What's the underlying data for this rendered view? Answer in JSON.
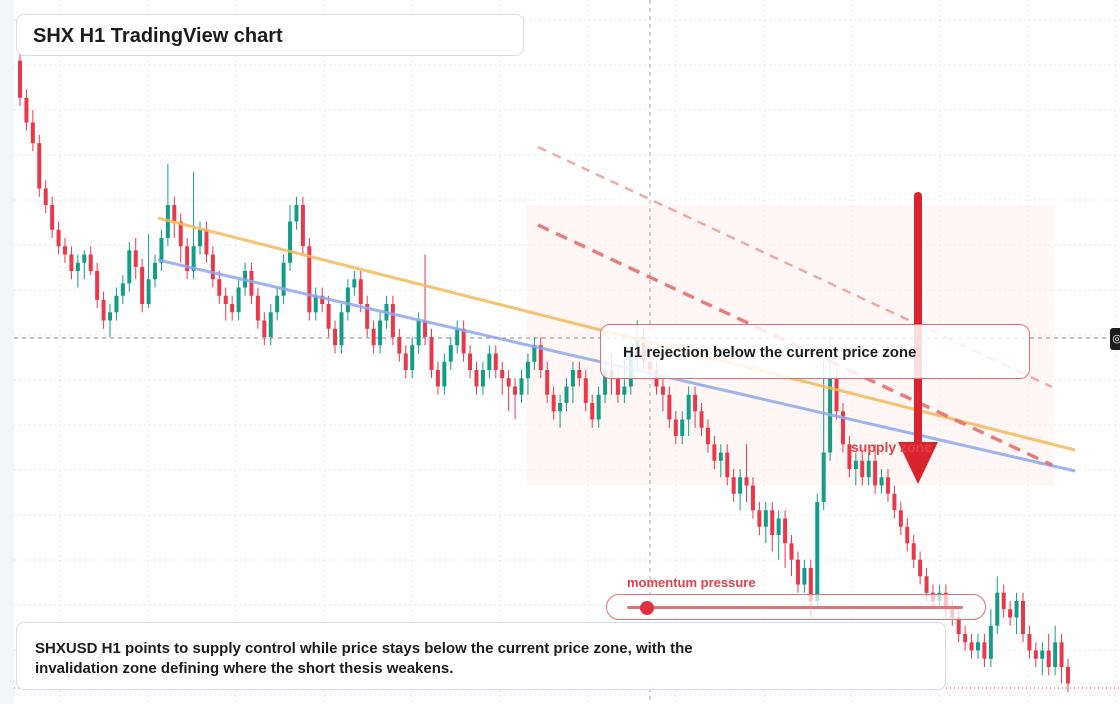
{
  "title": "SHX H1 TradingView chart",
  "callout": {
    "text": "H1 rejection below the current price zone"
  },
  "supply_zone_label": "supply zone",
  "momentum": {
    "label": "momentum pressure",
    "level": 0.06
  },
  "summary": "SHXUSD H1 points to supply control while price stays below the current price zone, with the invalidation zone defining where the short thesis weakens.",
  "edge_marker_icon": "target-icon",
  "colors": {
    "up": "#139c86",
    "down": "#e8384a",
    "trend_orange": "#f6b85a",
    "trend_blue": "#8fa6f0",
    "bear_dashed": "#e36a6a",
    "arrow": "#d9242e"
  },
  "chart_data": {
    "type": "candlestick",
    "timeframe": "H1",
    "symbol": "SHXUSD",
    "grid": true,
    "candles": [
      [
        105,
        96,
        107,
        94
      ],
      [
        96,
        90,
        98,
        88
      ],
      [
        90,
        85,
        93,
        83
      ],
      [
        85,
        74,
        87,
        72
      ],
      [
        74,
        70,
        76,
        68
      ],
      [
        70,
        64,
        72,
        62
      ],
      [
        64,
        60,
        66,
        58
      ],
      [
        60,
        58,
        62,
        56
      ],
      [
        58,
        54,
        60,
        52
      ],
      [
        54,
        56,
        58,
        50
      ],
      [
        56,
        58,
        59,
        52
      ],
      [
        58,
        54,
        60,
        53
      ],
      [
        54,
        47,
        56,
        45
      ],
      [
        47,
        42,
        49,
        40
      ],
      [
        42,
        44,
        46,
        38
      ],
      [
        44,
        48,
        50,
        42
      ],
      [
        48,
        51,
        53,
        46
      ],
      [
        51,
        59,
        61,
        49
      ],
      [
        59,
        55,
        62,
        52
      ],
      [
        55,
        46,
        57,
        44
      ],
      [
        46,
        52,
        63,
        45
      ],
      [
        52,
        56,
        58,
        50
      ],
      [
        56,
        62,
        64,
        54
      ],
      [
        62,
        70,
        80,
        60
      ],
      [
        70,
        66,
        72,
        62
      ],
      [
        66,
        60,
        68,
        56
      ],
      [
        60,
        54,
        62,
        52
      ],
      [
        54,
        60,
        78,
        52
      ],
      [
        60,
        64,
        66,
        58
      ],
      [
        64,
        58,
        66,
        56
      ],
      [
        58,
        52,
        60,
        50
      ],
      [
        52,
        48,
        54,
        46
      ],
      [
        48,
        46,
        50,
        42
      ],
      [
        46,
        44,
        48,
        42
      ],
      [
        44,
        50,
        52,
        42
      ],
      [
        50,
        54,
        56,
        48
      ],
      [
        54,
        48,
        56,
        46
      ],
      [
        48,
        42,
        50,
        40
      ],
      [
        42,
        38,
        44,
        36
      ],
      [
        38,
        44,
        46,
        36
      ],
      [
        44,
        48,
        50,
        42
      ],
      [
        48,
        56,
        58,
        46
      ],
      [
        56,
        66,
        70,
        54
      ],
      [
        66,
        70,
        72,
        64
      ],
      [
        70,
        60,
        72,
        58
      ],
      [
        60,
        44,
        62,
        42
      ],
      [
        44,
        48,
        50,
        42
      ],
      [
        48,
        46,
        50,
        44
      ],
      [
        46,
        40,
        48,
        38
      ],
      [
        40,
        36,
        42,
        34
      ],
      [
        36,
        44,
        46,
        34
      ],
      [
        44,
        50,
        52,
        42
      ],
      [
        50,
        52,
        54,
        48
      ],
      [
        52,
        46,
        54,
        44
      ],
      [
        46,
        40,
        48,
        38
      ],
      [
        40,
        36,
        42,
        34
      ],
      [
        36,
        42,
        44,
        34
      ],
      [
        42,
        46,
        48,
        40
      ],
      [
        46,
        38,
        48,
        36
      ],
      [
        38,
        34,
        40,
        32
      ],
      [
        34,
        30,
        36,
        28
      ],
      [
        30,
        36,
        38,
        28
      ],
      [
        36,
        42,
        44,
        34
      ],
      [
        42,
        38,
        58,
        36
      ],
      [
        38,
        30,
        40,
        28
      ],
      [
        30,
        26,
        32,
        24
      ],
      [
        26,
        32,
        34,
        24
      ],
      [
        32,
        36,
        38,
        30
      ],
      [
        36,
        40,
        42,
        34
      ],
      [
        40,
        34,
        42,
        32
      ],
      [
        34,
        30,
        36,
        28
      ],
      [
        30,
        26,
        32,
        24
      ],
      [
        26,
        30,
        32,
        24
      ],
      [
        30,
        34,
        36,
        28
      ],
      [
        34,
        30,
        36,
        28
      ],
      [
        30,
        28,
        32,
        24
      ],
      [
        28,
        26,
        30,
        20
      ],
      [
        26,
        24,
        28,
        18
      ],
      [
        24,
        28,
        30,
        22
      ],
      [
        28,
        32,
        34,
        24
      ],
      [
        32,
        36,
        38,
        30
      ],
      [
        36,
        30,
        38,
        28
      ],
      [
        30,
        24,
        32,
        22
      ],
      [
        24,
        20,
        26,
        18
      ],
      [
        20,
        22,
        24,
        16
      ],
      [
        22,
        26,
        28,
        20
      ],
      [
        26,
        30,
        32,
        22
      ],
      [
        30,
        28,
        32,
        26
      ],
      [
        28,
        22,
        30,
        20
      ],
      [
        22,
        18,
        24,
        16
      ],
      [
        18,
        24,
        26,
        16
      ],
      [
        24,
        30,
        32,
        22
      ],
      [
        30,
        28,
        34,
        24
      ],
      [
        28,
        24,
        30,
        22
      ],
      [
        24,
        26,
        36,
        22
      ],
      [
        26,
        34,
        38,
        24
      ],
      [
        34,
        38,
        42,
        30
      ],
      [
        38,
        32,
        40,
        30
      ],
      [
        32,
        30,
        34,
        28
      ],
      [
        30,
        26,
        32,
        24
      ],
      [
        26,
        24,
        28,
        20
      ],
      [
        24,
        18,
        26,
        16
      ],
      [
        18,
        14,
        20,
        12
      ],
      [
        14,
        18,
        20,
        12
      ],
      [
        18,
        24,
        26,
        14
      ],
      [
        24,
        20,
        26,
        16
      ],
      [
        20,
        16,
        22,
        14
      ],
      [
        16,
        12,
        18,
        10
      ],
      [
        12,
        8,
        14,
        6
      ],
      [
        8,
        10,
        12,
        4
      ],
      [
        10,
        4,
        12,
        2
      ],
      [
        4,
        0,
        6,
        -2
      ],
      [
        0,
        4,
        6,
        -4
      ],
      [
        4,
        2,
        12,
        -2
      ],
      [
        2,
        -4,
        4,
        -6
      ],
      [
        -4,
        -8,
        -2,
        -10
      ],
      [
        -8,
        -4,
        -2,
        -12
      ],
      [
        -4,
        -10,
        -2,
        -14
      ],
      [
        -10,
        -6,
        -4,
        -16
      ],
      [
        -6,
        -12,
        -4,
        -18
      ],
      [
        -12,
        -16,
        -10,
        -20
      ],
      [
        -16,
        -22,
        -14,
        -24
      ],
      [
        -22,
        -18,
        -16,
        -24
      ],
      [
        -18,
        -26,
        -16,
        -30
      ],
      [
        -26,
        -2,
        0,
        -28
      ],
      [
        -2,
        10,
        32,
        -4
      ],
      [
        10,
        28,
        38,
        8
      ],
      [
        28,
        20,
        30,
        18
      ],
      [
        20,
        12,
        22,
        10
      ],
      [
        12,
        6,
        14,
        4
      ],
      [
        6,
        8,
        10,
        2
      ],
      [
        8,
        4,
        10,
        2
      ],
      [
        4,
        8,
        10,
        2
      ],
      [
        8,
        2,
        12,
        0
      ],
      [
        2,
        4,
        6,
        0
      ],
      [
        4,
        0,
        6,
        -2
      ],
      [
        0,
        -4,
        2,
        -6
      ],
      [
        -4,
        -8,
        -2,
        -10
      ],
      [
        -8,
        -12,
        -6,
        -14
      ],
      [
        -12,
        -16,
        -10,
        -18
      ],
      [
        -16,
        -20,
        -14,
        -22
      ],
      [
        -20,
        -24,
        -18,
        -26
      ],
      [
        -24,
        -26,
        -22,
        -28
      ],
      [
        -26,
        -24,
        -22,
        -28
      ],
      [
        -24,
        -28,
        -22,
        -30
      ],
      [
        -28,
        -30,
        -26,
        -32
      ],
      [
        -30,
        -34,
        -28,
        -36
      ],
      [
        -34,
        -36,
        -32,
        -38
      ],
      [
        -36,
        -38,
        -34,
        -40
      ],
      [
        -38,
        -36,
        -34,
        -40
      ],
      [
        -36,
        -40,
        -34,
        -42
      ],
      [
        -40,
        -32,
        -28,
        -42
      ],
      [
        -32,
        -24,
        -20,
        -34
      ],
      [
        -24,
        -28,
        -22,
        -30
      ],
      [
        -28,
        -30,
        -26,
        -32
      ],
      [
        -30,
        -26,
        -24,
        -34
      ],
      [
        -26,
        -34,
        -24,
        -36
      ],
      [
        -34,
        -38,
        -32,
        -40
      ],
      [
        -38,
        -40,
        -36,
        -42
      ],
      [
        -40,
        -38,
        -36,
        -44
      ],
      [
        -38,
        -42,
        -34,
        -44
      ],
      [
        -42,
        -36,
        -32,
        -44
      ],
      [
        -36,
        -42,
        -34,
        -46
      ],
      [
        -42,
        -46,
        -40,
        -48
      ]
    ],
    "trendlines": [
      {
        "name": "orange",
        "points": [
          [
            0.14,
            70
          ],
          [
            1.0,
            20
          ]
        ]
      },
      {
        "name": "blue",
        "points": [
          [
            0.14,
            60
          ],
          [
            1.0,
            14
          ]
        ]
      }
    ]
  }
}
